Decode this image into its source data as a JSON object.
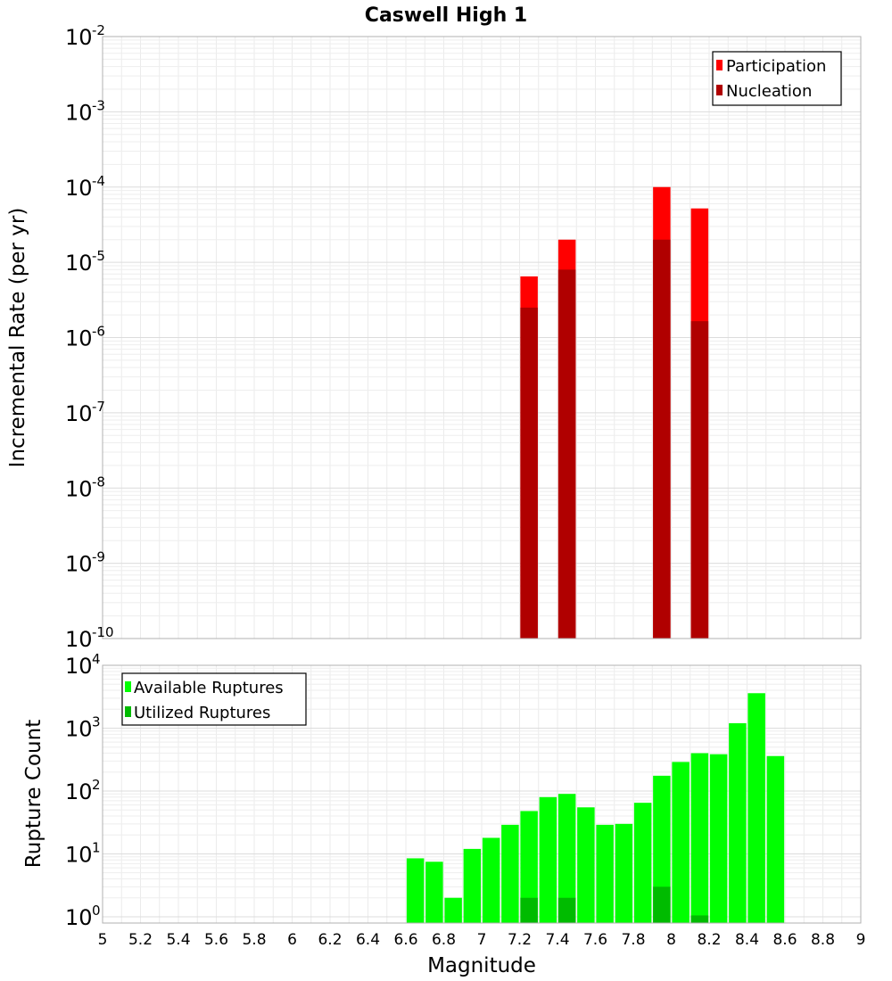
{
  "chart_data": [
    {
      "type": "bar",
      "title": "Caswell High 1",
      "xlabel": "",
      "ylabel": "Incremental Rate (per yr)",
      "yscale": "log",
      "xlim": [
        5,
        9
      ],
      "ylim_exp": [
        -10,
        -2
      ],
      "grid": true,
      "legend": "top-right",
      "x": [
        7.25,
        7.45,
        7.95,
        8.15
      ],
      "series": [
        {
          "name": "Participation",
          "color": "#ff0000",
          "values": [
            6.5e-06,
            2e-05,
            0.0001,
            5.2e-05
          ]
        },
        {
          "name": "Nucleation",
          "color": "#b00000",
          "values": [
            2.5e-06,
            8e-06,
            2e-05,
            1.65e-06
          ]
        }
      ]
    },
    {
      "type": "bar",
      "title": "",
      "xlabel": "Magnitude",
      "ylabel": "Rupture Count",
      "yscale": "log",
      "xlim": [
        5,
        9
      ],
      "ylim_exp": [
        -0.1,
        4
      ],
      "grid": true,
      "legend": "top-left",
      "x": [
        6.65,
        6.75,
        6.85,
        6.95,
        7.05,
        7.15,
        7.25,
        7.35,
        7.45,
        7.55,
        7.65,
        7.75,
        7.85,
        7.95,
        8.05,
        8.15,
        8.25,
        8.35,
        8.45,
        8.55
      ],
      "series": [
        {
          "name": "Available Ruptures",
          "color": "#00ff00",
          "values": [
            8.5,
            7.5,
            2,
            12,
            18,
            29,
            48,
            80,
            90,
            55,
            29,
            30,
            65,
            175,
            290,
            400,
            385,
            1200,
            3600,
            360
          ]
        },
        {
          "name": "Utilized Ruptures",
          "color": "#00bb00",
          "values": [
            0,
            0,
            0,
            0,
            0,
            0,
            2,
            0,
            2,
            0,
            0,
            0,
            0,
            3,
            0,
            1.05,
            0,
            0,
            0,
            0
          ]
        }
      ]
    }
  ],
  "x_ticks": [
    "5",
    "5.2",
    "5.4",
    "5.6",
    "5.8",
    "6",
    "6.2",
    "6.4",
    "6.6",
    "6.8",
    "7",
    "7.2",
    "7.4",
    "7.6",
    "7.8",
    "8",
    "8.2",
    "8.4",
    "8.6",
    "8.8",
    "9"
  ],
  "top_y_ticks": [
    {
      "base": "10",
      "exp": "-10"
    },
    {
      "base": "10",
      "exp": "-9"
    },
    {
      "base": "10",
      "exp": "-8"
    },
    {
      "base": "10",
      "exp": "-7"
    },
    {
      "base": "10",
      "exp": "-6"
    },
    {
      "base": "10",
      "exp": "-5"
    },
    {
      "base": "10",
      "exp": "-4"
    },
    {
      "base": "10",
      "exp": "-3"
    },
    {
      "base": "10",
      "exp": "-2"
    }
  ],
  "bottom_y_ticks": [
    {
      "base": "10",
      "exp": "0"
    },
    {
      "base": "10",
      "exp": "1"
    },
    {
      "base": "10",
      "exp": "2"
    },
    {
      "base": "10",
      "exp": "3"
    },
    {
      "base": "10",
      "exp": "4"
    }
  ]
}
